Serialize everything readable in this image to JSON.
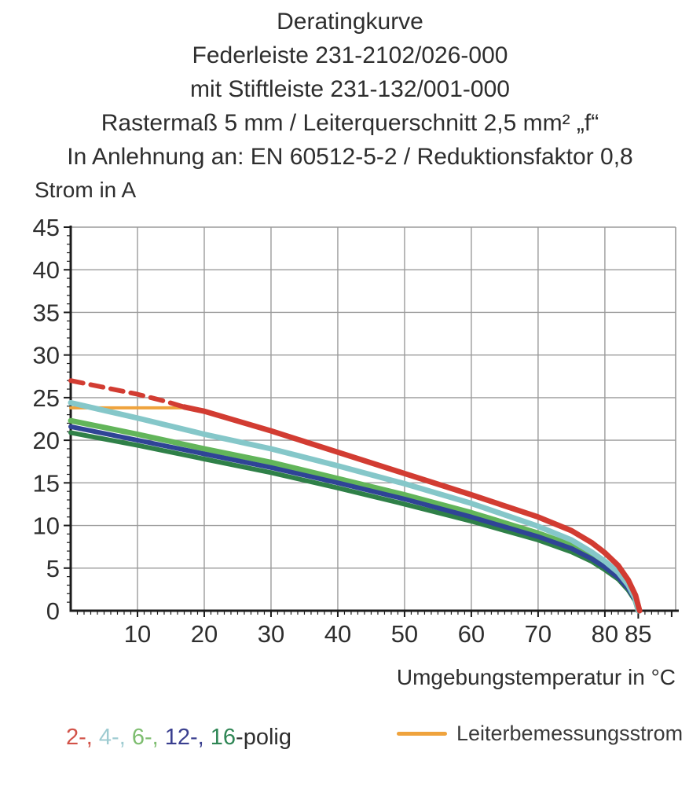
{
  "title": {
    "lines": [
      "Deratingkurve",
      "Federleiste 231-2102/026-000",
      "mit Stiftleiste 231-132/001-000",
      "Rastermaß 5 mm / Leiterquerschnitt 2,5 mm² „f“",
      "In Anlehnung an: EN 60512-5-2 / Reduktionsfaktor 0,8"
    ]
  },
  "chart_data": {
    "type": "line",
    "title": "Deratingkurve",
    "ylabel": "Strom in A",
    "xlabel": "Umgebungstemperatur in °C",
    "xlim": [
      0,
      90.6
    ],
    "ylim": [
      0,
      45
    ],
    "x_ticks": [
      10,
      20,
      30,
      40,
      50,
      60,
      70,
      80,
      85
    ],
    "y_ticks": [
      0,
      5,
      10,
      15,
      20,
      25,
      30,
      35,
      40,
      45
    ],
    "grid": true,
    "grid_color": "#9b9b9b",
    "axis_color": "#1c1c1c",
    "legend_position": "bottom",
    "rated_current_A": 23.8,
    "series": [
      {
        "name": "Leiterbemessungsstrom",
        "color": "#efa33d",
        "width": 4,
        "dash": null,
        "points": [
          [
            0,
            23.8
          ],
          [
            17,
            23.8
          ]
        ]
      },
      {
        "name": "16-polig",
        "color": "#2f8048",
        "width": 6,
        "dash": null,
        "points": [
          [
            0,
            20.9
          ],
          [
            10,
            19.4
          ],
          [
            20,
            17.8
          ],
          [
            30,
            16.2
          ],
          [
            40,
            14.4
          ],
          [
            50,
            12.5
          ],
          [
            60,
            10.5
          ],
          [
            70,
            8.3
          ],
          [
            75,
            6.9
          ],
          [
            78,
            5.8
          ],
          [
            80,
            4.8
          ],
          [
            82,
            3.7
          ],
          [
            83.5,
            2.4
          ],
          [
            84.5,
            1.2
          ],
          [
            85,
            0
          ]
        ]
      },
      {
        "name": "6-polig",
        "color": "#62b55a",
        "width": 7,
        "dash": null,
        "points": [
          [
            0,
            22.3
          ],
          [
            10,
            20.7
          ],
          [
            20,
            19.0
          ],
          [
            30,
            17.4
          ],
          [
            40,
            15.5
          ],
          [
            50,
            13.6
          ],
          [
            60,
            11.5
          ],
          [
            70,
            9.1
          ],
          [
            75,
            7.7
          ],
          [
            78,
            6.4
          ],
          [
            80,
            5.4
          ],
          [
            82,
            4.2
          ],
          [
            83.5,
            2.8
          ],
          [
            84.5,
            1.4
          ],
          [
            85,
            0
          ]
        ]
      },
      {
        "name": "12-polig",
        "color": "#2f4496",
        "width": 6,
        "dash": null,
        "points": [
          [
            0,
            21.6
          ],
          [
            10,
            20.0
          ],
          [
            20,
            18.4
          ],
          [
            30,
            16.8
          ],
          [
            40,
            15.0
          ],
          [
            50,
            13.1
          ],
          [
            60,
            11.0
          ],
          [
            70,
            8.7
          ],
          [
            75,
            7.3
          ],
          [
            78,
            6.1
          ],
          [
            80,
            5.1
          ],
          [
            82,
            3.9
          ],
          [
            83.5,
            2.6
          ],
          [
            84.5,
            1.3
          ],
          [
            85,
            0
          ]
        ]
      },
      {
        "name": "4-polig",
        "color": "#85c7c9",
        "width": 7,
        "dash": null,
        "points": [
          [
            0,
            24.4
          ],
          [
            10,
            22.6
          ],
          [
            20,
            20.7
          ],
          [
            30,
            19.0
          ],
          [
            40,
            17.0
          ],
          [
            50,
            14.9
          ],
          [
            60,
            12.6
          ],
          [
            70,
            9.9
          ],
          [
            75,
            8.3
          ],
          [
            78,
            6.9
          ],
          [
            80,
            5.8
          ],
          [
            82,
            4.5
          ],
          [
            83.5,
            3.0
          ],
          [
            84.5,
            1.5
          ],
          [
            85,
            0
          ]
        ]
      },
      {
        "name": "2-polig-projection",
        "color": "#d23c32",
        "width": 6,
        "dash": "16 10",
        "points": [
          [
            0,
            27.0
          ],
          [
            5,
            26.2
          ],
          [
            10,
            25.4
          ],
          [
            14,
            24.6
          ],
          [
            17,
            23.9
          ]
        ]
      },
      {
        "name": "2-polig",
        "color": "#d23c32",
        "width": 7,
        "dash": null,
        "points": [
          [
            17,
            23.9
          ],
          [
            20,
            23.4
          ],
          [
            30,
            21.1
          ],
          [
            40,
            18.6
          ],
          [
            50,
            16.1
          ],
          [
            60,
            13.6
          ],
          [
            70,
            11.0
          ],
          [
            75,
            9.4
          ],
          [
            78,
            8.0
          ],
          [
            80,
            6.8
          ],
          [
            82,
            5.3
          ],
          [
            83.5,
            3.6
          ],
          [
            84.6,
            1.8
          ],
          [
            85.2,
            0
          ]
        ]
      }
    ]
  },
  "legend": {
    "poles_items": [
      {
        "poles": "2",
        "label": "2-,",
        "color": "#d25248"
      },
      {
        "poles": "4",
        "label": "4-,",
        "color": "#9ecbd1"
      },
      {
        "poles": "6",
        "label": "6-,",
        "color": "#7dbd6f"
      },
      {
        "poles": "12",
        "label": "12-,",
        "color": "#3a3f8f"
      },
      {
        "poles": "16",
        "label": "16",
        "color": "#2f8655"
      }
    ],
    "poles_suffix": "-polig",
    "rated": {
      "label": "Leiterbemessungsstrom",
      "color": "#efa33d"
    }
  }
}
